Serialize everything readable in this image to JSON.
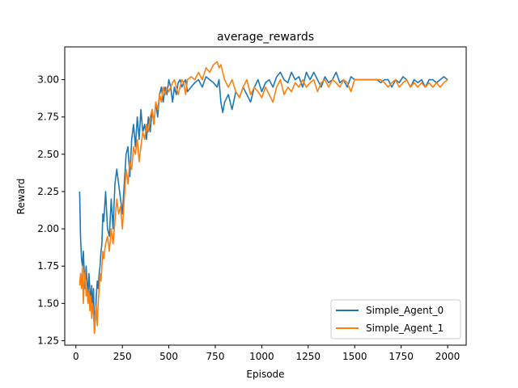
{
  "chart_data": {
    "type": "line",
    "title": "average_rewards",
    "xlabel": "Episode",
    "ylabel": "Reward",
    "xlim": [
      -60,
      2100
    ],
    "ylim": [
      1.22,
      3.22
    ],
    "xticks": [
      0,
      250,
      500,
      750,
      1000,
      1250,
      1500,
      1750,
      2000
    ],
    "xtick_labels": [
      "0",
      "250",
      "500",
      "750",
      "1000",
      "1250",
      "1500",
      "1750",
      "2000"
    ],
    "yticks": [
      1.25,
      1.5,
      1.75,
      2.0,
      2.25,
      2.5,
      2.75,
      3.0
    ],
    "ytick_labels": [
      "1.25",
      "1.50",
      "1.75",
      "2.00",
      "2.25",
      "2.50",
      "2.75",
      "3.00"
    ],
    "grid": false,
    "legend_position": "lower right",
    "series": [
      {
        "name": "Simple_Agent_0",
        "color": "#1f77b4",
        "x": [
          20,
          25,
          30,
          35,
          40,
          45,
          50,
          55,
          60,
          65,
          70,
          75,
          80,
          85,
          90,
          95,
          100,
          105,
          110,
          115,
          120,
          125,
          130,
          135,
          140,
          145,
          150,
          160,
          170,
          180,
          190,
          200,
          210,
          220,
          230,
          240,
          250,
          260,
          270,
          280,
          290,
          300,
          310,
          320,
          330,
          340,
          350,
          360,
          370,
          380,
          390,
          400,
          410,
          420,
          430,
          440,
          450,
          460,
          470,
          480,
          490,
          500,
          510,
          520,
          530,
          540,
          550,
          560,
          570,
          580,
          590,
          600,
          620,
          640,
          660,
          680,
          700,
          720,
          740,
          760,
          770,
          780,
          790,
          800,
          820,
          840,
          860,
          880,
          900,
          920,
          940,
          960,
          980,
          1000,
          1020,
          1040,
          1060,
          1080,
          1100,
          1120,
          1140,
          1160,
          1180,
          1200,
          1220,
          1240,
          1260,
          1280,
          1300,
          1320,
          1340,
          1360,
          1380,
          1400,
          1420,
          1440,
          1460,
          1480,
          1500,
          1520,
          1540,
          1560,
          1580,
          1600,
          1620,
          1640,
          1660,
          1680,
          1700,
          1720,
          1740,
          1760,
          1780,
          1800,
          1820,
          1840,
          1860,
          1880,
          1900,
          1920,
          1940,
          1960,
          1980,
          2000
        ],
        "y": [
          2.25,
          1.95,
          1.8,
          1.75,
          1.85,
          1.7,
          1.6,
          1.75,
          1.65,
          1.55,
          1.7,
          1.6,
          1.5,
          1.62,
          1.45,
          1.6,
          1.3,
          1.4,
          1.55,
          1.65,
          1.6,
          1.7,
          1.75,
          1.85,
          1.9,
          2.1,
          2.05,
          2.25,
          2.0,
          1.95,
          2.2,
          2.0,
          2.3,
          2.4,
          2.3,
          2.2,
          2.1,
          2.3,
          2.5,
          2.55,
          2.35,
          2.6,
          2.7,
          2.55,
          2.75,
          2.6,
          2.8,
          2.65,
          2.7,
          2.6,
          2.75,
          2.65,
          2.8,
          2.7,
          2.85,
          2.75,
          2.9,
          2.95,
          2.85,
          2.95,
          2.9,
          3.0,
          2.95,
          2.85,
          2.95,
          2.9,
          2.98,
          3.0,
          2.95,
          2.98,
          3.0,
          2.92,
          2.95,
          2.98,
          3.0,
          2.95,
          3.02,
          3.0,
          2.98,
          2.95,
          3.0,
          2.85,
          2.78,
          2.85,
          2.9,
          2.8,
          2.92,
          2.88,
          2.95,
          2.9,
          2.85,
          2.95,
          3.0,
          2.92,
          2.98,
          3.0,
          2.95,
          3.02,
          3.05,
          3.0,
          2.98,
          3.05,
          3.0,
          3.02,
          2.95,
          3.05,
          3.0,
          3.05,
          3.0,
          2.95,
          3.02,
          2.98,
          3.0,
          3.05,
          2.98,
          3.0,
          2.95,
          3.02,
          3.0,
          3.0,
          3.0,
          3.0,
          3.0,
          3.0,
          3.0,
          2.98,
          3.0,
          3.0,
          2.95,
          3.0,
          2.98,
          3.02,
          3.0,
          2.95,
          3.0,
          2.98,
          3.0,
          2.95,
          3.0,
          3.0,
          2.98,
          3.0,
          3.02,
          3.0
        ],
        "note": ""
      },
      {
        "name": "Simple_Agent_1",
        "color": "#ff7f0e",
        "x": [
          20,
          25,
          30,
          35,
          40,
          45,
          50,
          55,
          60,
          65,
          70,
          75,
          80,
          85,
          90,
          95,
          100,
          105,
          110,
          115,
          120,
          125,
          130,
          135,
          140,
          145,
          150,
          160,
          170,
          180,
          190,
          200,
          210,
          220,
          230,
          240,
          250,
          260,
          270,
          280,
          290,
          300,
          310,
          320,
          330,
          340,
          350,
          360,
          370,
          380,
          390,
          400,
          410,
          420,
          430,
          440,
          450,
          460,
          470,
          480,
          490,
          500,
          510,
          520,
          530,
          540,
          550,
          560,
          570,
          580,
          590,
          600,
          620,
          640,
          660,
          680,
          700,
          720,
          740,
          760,
          770,
          780,
          790,
          800,
          820,
          840,
          860,
          880,
          900,
          920,
          940,
          960,
          980,
          1000,
          1020,
          1040,
          1060,
          1080,
          1100,
          1120,
          1140,
          1160,
          1180,
          1200,
          1220,
          1240,
          1260,
          1280,
          1300,
          1320,
          1340,
          1360,
          1380,
          1400,
          1420,
          1440,
          1460,
          1480,
          1500,
          1520,
          1540,
          1560,
          1580,
          1600,
          1620,
          1640,
          1660,
          1680,
          1700,
          1720,
          1740,
          1760,
          1780,
          1800,
          1820,
          1840,
          1860,
          1880,
          1900,
          1920,
          1940,
          1960,
          1980,
          2000
        ],
        "y": [
          1.62,
          1.7,
          1.6,
          1.75,
          1.5,
          1.65,
          1.72,
          1.55,
          1.6,
          1.5,
          1.58,
          1.45,
          1.55,
          1.4,
          1.5,
          1.42,
          1.3,
          1.45,
          1.48,
          1.35,
          1.5,
          1.6,
          1.7,
          1.65,
          1.75,
          1.85,
          1.8,
          1.9,
          1.95,
          1.85,
          2.0,
          1.9,
          2.05,
          2.2,
          2.1,
          2.15,
          2.0,
          2.2,
          2.4,
          2.3,
          2.45,
          2.4,
          2.55,
          2.5,
          2.6,
          2.45,
          2.55,
          2.65,
          2.6,
          2.7,
          2.65,
          2.75,
          2.8,
          2.7,
          2.85,
          2.8,
          2.9,
          2.85,
          2.95,
          2.9,
          2.95,
          2.92,
          2.95,
          2.98,
          3.0,
          2.95,
          2.9,
          2.95,
          3.0,
          2.98,
          2.9,
          3.0,
          3.02,
          3.0,
          3.05,
          3.0,
          3.08,
          3.05,
          3.1,
          3.12,
          3.08,
          3.1,
          3.05,
          3.0,
          2.95,
          3.0,
          2.92,
          2.88,
          2.95,
          3.0,
          2.9,
          2.95,
          2.92,
          2.88,
          2.95,
          2.9,
          2.85,
          2.95,
          3.0,
          2.9,
          2.95,
          2.92,
          2.98,
          2.95,
          3.0,
          2.95,
          2.98,
          3.0,
          2.92,
          2.98,
          3.0,
          2.95,
          3.0,
          2.98,
          2.95,
          3.0,
          2.98,
          2.92,
          3.0,
          3.0,
          3.0,
          3.0,
          3.0,
          3.0,
          3.0,
          3.0,
          2.98,
          2.95,
          2.98,
          3.0,
          2.95,
          2.98,
          3.0,
          2.95,
          2.98,
          2.95,
          2.98,
          2.95,
          2.98,
          2.95,
          2.98,
          2.95,
          2.98,
          3.0
        ],
        "note": ""
      }
    ]
  }
}
